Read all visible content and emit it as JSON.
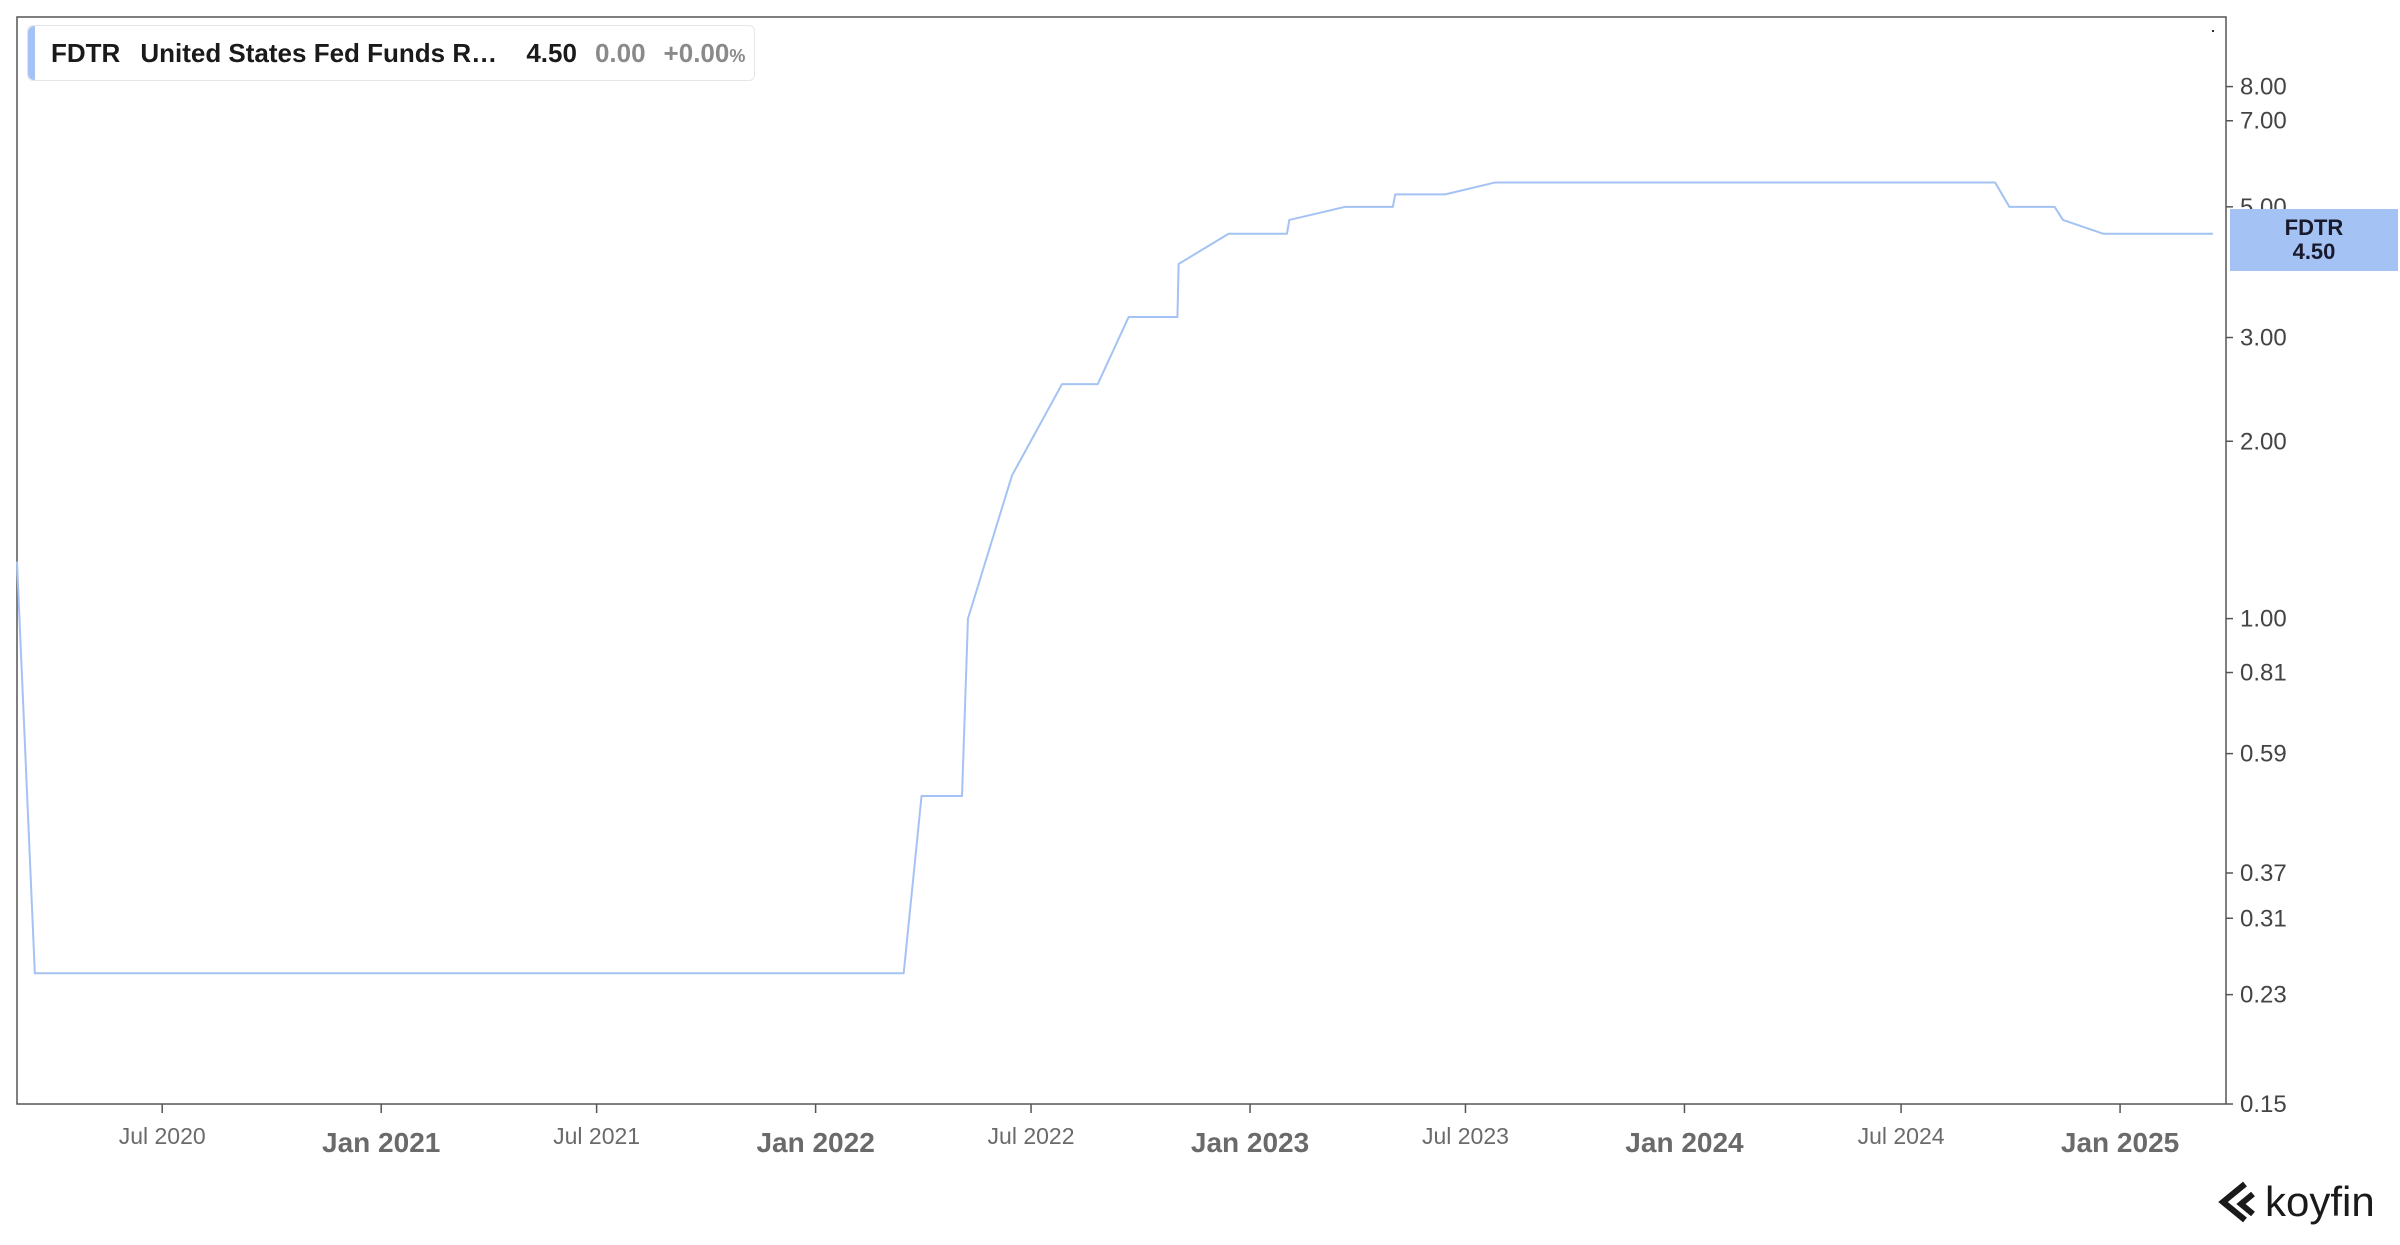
{
  "legend": {
    "ticker": "FDTR",
    "name": "United States Fed Funds Rate",
    "value": "4.50",
    "change": "0.00",
    "change_pct": "+0.00",
    "pct_sign": "%"
  },
  "price_tag": {
    "ticker": "FDTR",
    "value": "4.50"
  },
  "brand": {
    "name": "koyfin"
  },
  "colors": {
    "series": "#a4c2f4",
    "axis": "#555555",
    "text_minor": "#6a6a6a",
    "text_major": "#6a6a6a"
  },
  "chart_data": {
    "type": "line",
    "scale": "log",
    "grid": false,
    "legend_position": "top-left",
    "x_axis": {
      "range": [
        "2020-03-01",
        "2025-03-31"
      ],
      "ticks": [
        {
          "date": "2020-07-01",
          "label": "Jul 2020",
          "major": false
        },
        {
          "date": "2021-01-01",
          "label": "Jan 2021",
          "major": true
        },
        {
          "date": "2021-07-01",
          "label": "Jul 2021",
          "major": false
        },
        {
          "date": "2022-01-01",
          "label": "Jan 2022",
          "major": true
        },
        {
          "date": "2022-07-01",
          "label": "Jul 2022",
          "major": false
        },
        {
          "date": "2023-01-01",
          "label": "Jan 2023",
          "major": true
        },
        {
          "date": "2023-07-01",
          "label": "Jul 2023",
          "major": false
        },
        {
          "date": "2024-01-01",
          "label": "Jan 2024",
          "major": true
        },
        {
          "date": "2024-07-01",
          "label": "Jul 2024",
          "major": false
        },
        {
          "date": "2025-01-01",
          "label": "Jan 2025",
          "major": true
        }
      ]
    },
    "y_axis": {
      "range": [
        0.15,
        10.5
      ],
      "ticks": [
        {
          "value": 0.15,
          "label": "0.15"
        },
        {
          "value": 0.23,
          "label": "0.23"
        },
        {
          "value": 0.31,
          "label": "0.31"
        },
        {
          "value": 0.37,
          "label": "0.37"
        },
        {
          "value": 0.59,
          "label": "0.59"
        },
        {
          "value": 0.81,
          "label": "0.81"
        },
        {
          "value": 1.0,
          "label": "1.00"
        },
        {
          "value": 2.0,
          "label": "2.00"
        },
        {
          "value": 3.0,
          "label": "3.00"
        },
        {
          "value": 5.0,
          "label": "5.00"
        },
        {
          "value": 7.0,
          "label": "7.00"
        },
        {
          "value": 8.0,
          "label": "8.00"
        }
      ]
    },
    "series": [
      {
        "ticker": "FDTR",
        "points": [
          [
            "2020-03-01",
            1.25
          ],
          [
            "2020-03-16",
            0.25
          ],
          [
            "2022-03-16",
            0.25
          ],
          [
            "2022-03-31",
            0.5
          ],
          [
            "2022-05-04",
            0.5
          ],
          [
            "2022-05-09",
            1.0
          ],
          [
            "2022-06-15",
            1.75
          ],
          [
            "2022-07-27",
            2.5
          ],
          [
            "2022-08-26",
            2.5
          ],
          [
            "2022-09-21",
            3.25
          ],
          [
            "2022-11-01",
            3.25
          ],
          [
            "2022-11-02",
            4.0
          ],
          [
            "2022-12-14",
            4.5
          ],
          [
            "2023-02-01",
            4.5
          ],
          [
            "2023-02-03",
            4.75
          ],
          [
            "2023-03-22",
            5.0
          ],
          [
            "2023-05-01",
            5.0
          ],
          [
            "2023-05-03",
            5.25
          ],
          [
            "2023-06-14",
            5.25
          ],
          [
            "2023-07-26",
            5.5
          ],
          [
            "2024-09-18",
            5.5
          ],
          [
            "2024-09-30",
            5.0
          ],
          [
            "2024-11-07",
            5.0
          ],
          [
            "2024-11-14",
            4.75
          ],
          [
            "2024-12-18",
            4.5
          ],
          [
            "2025-03-20",
            4.5
          ]
        ]
      }
    ]
  }
}
